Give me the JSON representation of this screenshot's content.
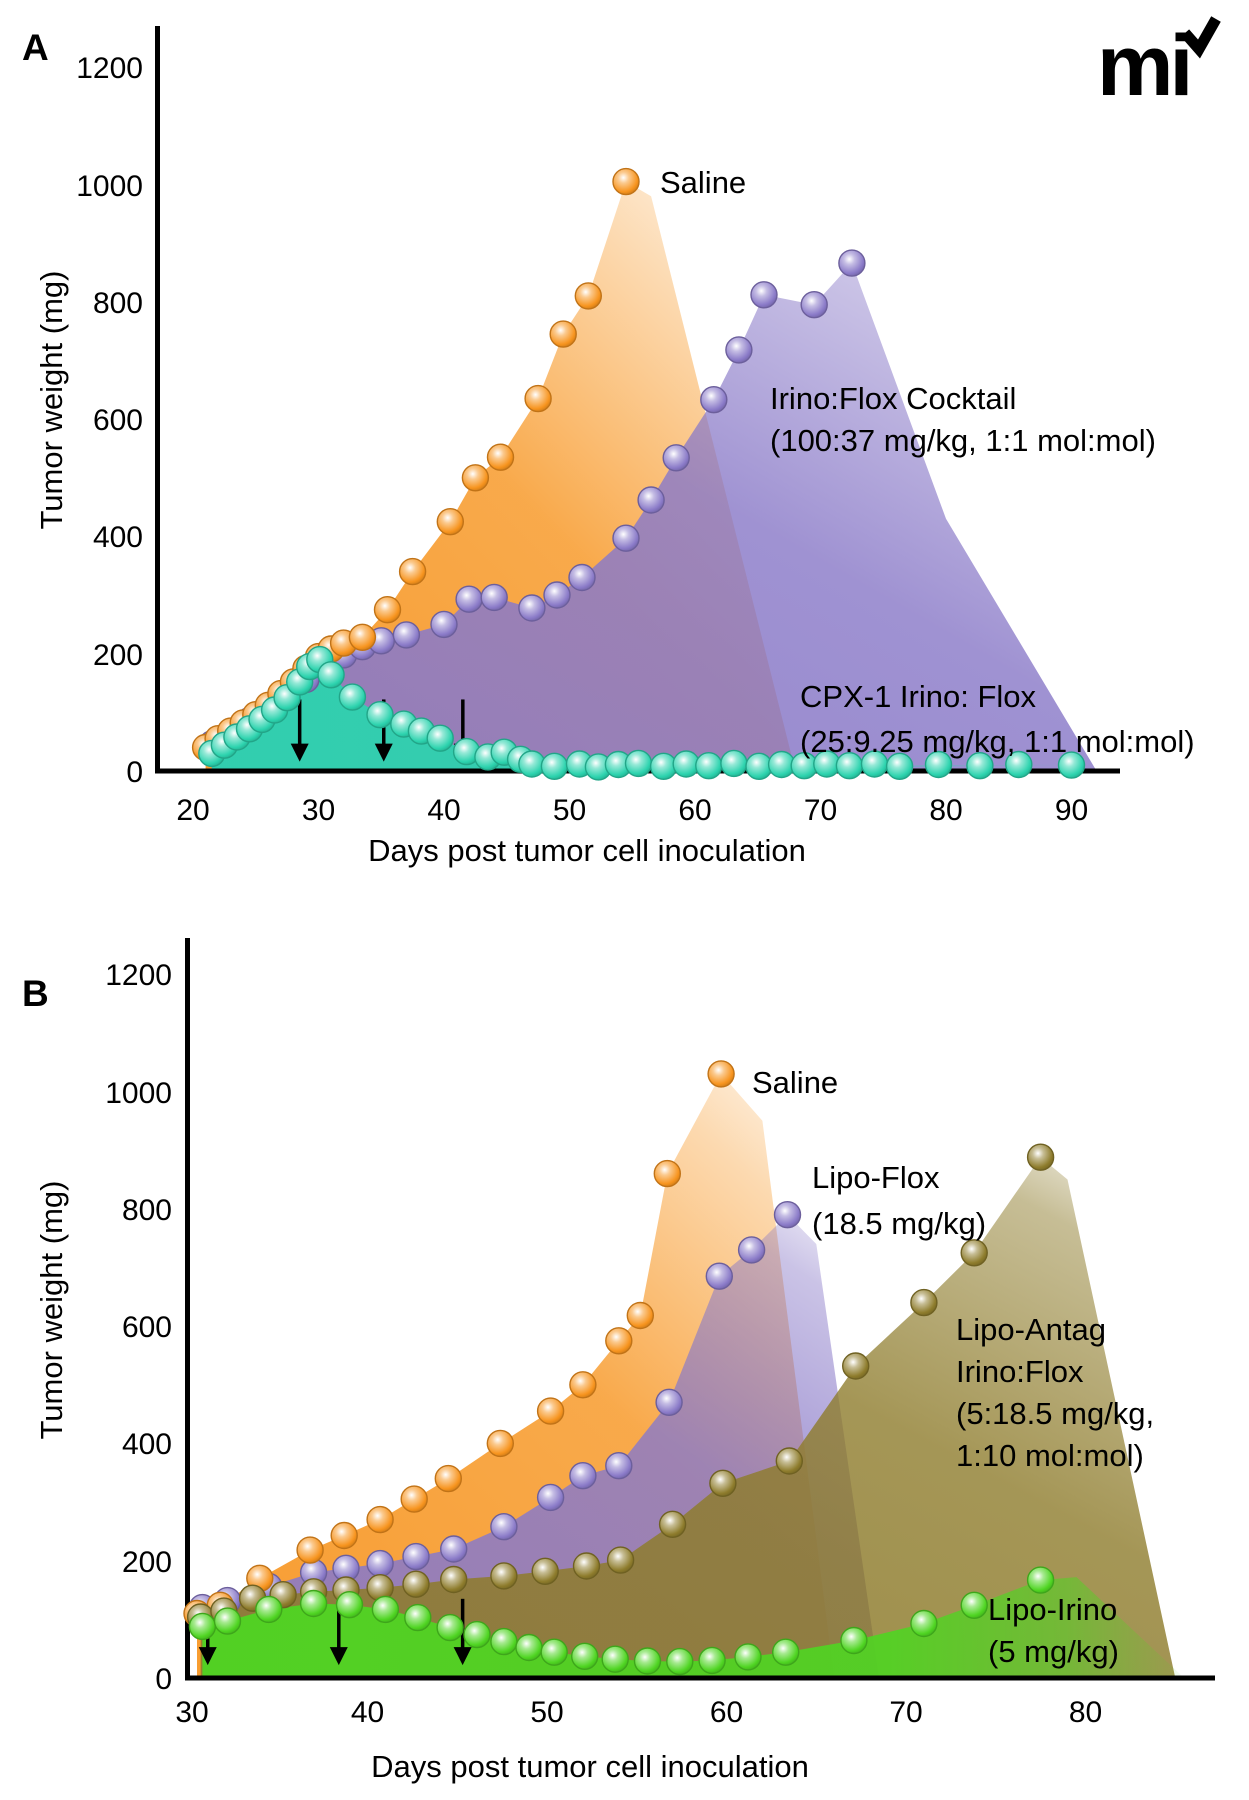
{
  "logo_text": "mi",
  "chart_data": [
    {
      "type": "scatter",
      "panel_label": "A",
      "xlabel": "Days post tumor cell inoculation",
      "ylabel": "Tumor weight (mg)",
      "xlim": [
        20,
        93
      ],
      "ylim": [
        0,
        1300
      ],
      "x_tick_labels": [
        "20",
        "30",
        "40",
        "50",
        "60",
        "70",
        "80",
        "90"
      ],
      "y_tick_labels": [
        "1200",
        "1000",
        "800",
        "600",
        "400",
        "200",
        "0"
      ],
      "grid": false,
      "dose_arrow_days": [
        28.5,
        35.2,
        41.5
      ],
      "series": [
        {
          "name": "Saline",
          "color": "#F7941E",
          "label_lines": [
            "Saline"
          ],
          "points": [
            [
              21,
              40
            ],
            [
              22,
              55
            ],
            [
              23,
              68
            ],
            [
              24,
              82
            ],
            [
              25,
              96
            ],
            [
              26,
              112
            ],
            [
              27,
              132
            ],
            [
              28,
              152
            ],
            [
              29,
              175
            ],
            [
              30,
              195
            ],
            [
              31,
              208
            ],
            [
              32,
              218
            ],
            [
              33.5,
              228
            ],
            [
              35.5,
              275
            ],
            [
              37.5,
              340
            ],
            [
              40.5,
              425
            ],
            [
              42.5,
              500
            ],
            [
              44.5,
              535
            ],
            [
              47.5,
              635
            ],
            [
              49.5,
              745
            ],
            [
              51.5,
              810
            ],
            [
              54.5,
              1005
            ]
          ]
        },
        {
          "name": "Irino:Flox Cocktail",
          "color": "#8A7AC8",
          "label_lines": [
            "Irino:Flox Cocktail",
            "(100:37 mg/kg, 1:1 mol:mol)"
          ],
          "points": [
            [
              21.5,
              46
            ],
            [
              23,
              66
            ],
            [
              24.5,
              86
            ],
            [
              26,
              108
            ],
            [
              27.5,
              132
            ],
            [
              29,
              156
            ],
            [
              30.5,
              178
            ],
            [
              32,
              198
            ],
            [
              33.5,
              212
            ],
            [
              35,
              222
            ],
            [
              37,
              232
            ],
            [
              40,
              250
            ],
            [
              42,
              293
            ],
            [
              44,
              296
            ],
            [
              47,
              278
            ],
            [
              49,
              300
            ],
            [
              51,
              330
            ],
            [
              54.5,
              397
            ],
            [
              56.5,
              462
            ],
            [
              58.5,
              534
            ],
            [
              61.5,
              633
            ],
            [
              63.5,
              718
            ],
            [
              65.5,
              812
            ],
            [
              69.5,
              795
            ],
            [
              72.5,
              866
            ]
          ]
        },
        {
          "name": "CPX-1 Irino:Flox",
          "color": "#2CD3AE",
          "label_lines": [
            "CPX-1 Irino: Flox",
            "(25:9.25 mg/kg, 1:1 mol:mol)"
          ],
          "points": [
            [
              21.5,
              30
            ],
            [
              22.5,
              44
            ],
            [
              23.5,
              58
            ],
            [
              24.5,
              72
            ],
            [
              25.5,
              88
            ],
            [
              26.5,
              104
            ],
            [
              27.5,
              125
            ],
            [
              28.5,
              152
            ],
            [
              29.3,
              178
            ],
            [
              30.1,
              190
            ],
            [
              31,
              164
            ],
            [
              32.7,
              126
            ],
            [
              34.9,
              96
            ],
            [
              36.8,
              80
            ],
            [
              38.2,
              68
            ],
            [
              39.7,
              56
            ],
            [
              41.8,
              33
            ],
            [
              43.5,
              24
            ],
            [
              44.8,
              32
            ],
            [
              46.1,
              20
            ],
            [
              47,
              12
            ],
            [
              48.8,
              8
            ],
            [
              50.8,
              12
            ],
            [
              52.3,
              7
            ],
            [
              53.9,
              11
            ],
            [
              55.5,
              13
            ],
            [
              57.5,
              8
            ],
            [
              59.3,
              12
            ],
            [
              61.1,
              9
            ],
            [
              63.1,
              13
            ],
            [
              65.1,
              8
            ],
            [
              66.9,
              11
            ],
            [
              68.7,
              9
            ],
            [
              70.5,
              12
            ],
            [
              72.3,
              9
            ],
            [
              74.3,
              12
            ],
            [
              76.3,
              8
            ],
            [
              79.4,
              11
            ],
            [
              82.7,
              9
            ],
            [
              85.8,
              11
            ],
            [
              90,
              10
            ]
          ]
        }
      ]
    },
    {
      "type": "scatter",
      "panel_label": "B",
      "xlabel": "Days post tumor cell inoculation",
      "ylabel": "Tumor weight (mg)",
      "xlim": [
        30,
        86
      ],
      "ylim": [
        0,
        1300
      ],
      "x_tick_labels": [
        "30",
        "40",
        "50",
        "60",
        "70",
        "80"
      ],
      "y_tick_labels": [
        "1200",
        "1000",
        "800",
        "600",
        "400",
        "200",
        "0"
      ],
      "grid": false,
      "dose_arrow_days": [
        31.1,
        38.4,
        45.3
      ],
      "series": [
        {
          "name": "Saline",
          "color": "#F7941E",
          "label_lines": [
            "Saline"
          ],
          "points": [
            [
              30.5,
              110
            ],
            [
              31.8,
              124
            ],
            [
              34,
              170
            ],
            [
              36.8,
              218
            ],
            [
              38.7,
              243
            ],
            [
              40.7,
              270
            ],
            [
              42.6,
              305
            ],
            [
              44.5,
              340
            ],
            [
              47.4,
              400
            ],
            [
              50.2,
              455
            ],
            [
              52,
              500
            ],
            [
              54,
              575
            ],
            [
              55.2,
              618
            ],
            [
              56.7,
              860
            ],
            [
              59.7,
              1030
            ]
          ]
        },
        {
          "name": "Lipo-Flox",
          "color": "#8A7AC8",
          "label_lines": [
            "Lipo-Flox",
            "(18.5 mg/kg)"
          ],
          "points": [
            [
              30.8,
              120
            ],
            [
              32.2,
              132
            ],
            [
              34.5,
              156
            ],
            [
              37,
              180
            ],
            [
              38.8,
              187
            ],
            [
              40.7,
              195
            ],
            [
              42.7,
              207
            ],
            [
              44.8,
              220
            ],
            [
              47.6,
              258
            ],
            [
              50.2,
              308
            ],
            [
              52,
              345
            ],
            [
              54,
              362
            ],
            [
              56.8,
              470
            ],
            [
              59.6,
              685
            ],
            [
              61.4,
              730
            ],
            [
              63.4,
              790
            ]
          ]
        },
        {
          "name": "Lipo-Antag Irino:Flox",
          "color": "#8E7C2C",
          "label_lines": [
            "Lipo-Antag",
            "Irino:Flox",
            "(5:18.5 mg/kg,",
            "1:10 mol:mol)"
          ],
          "points": [
            [
              30.7,
              104
            ],
            [
              32,
              114
            ],
            [
              33.6,
              136
            ],
            [
              35.3,
              142
            ],
            [
              37,
              147
            ],
            [
              38.8,
              150
            ],
            [
              40.7,
              154
            ],
            [
              42.7,
              160
            ],
            [
              44.8,
              168
            ],
            [
              47.6,
              174
            ],
            [
              49.9,
              182
            ],
            [
              52.2,
              191
            ],
            [
              54.1,
              201
            ],
            [
              57,
              262
            ],
            [
              59.8,
              332
            ],
            [
              63.5,
              370
            ],
            [
              67.2,
              532
            ],
            [
              71,
              640
            ],
            [
              73.8,
              725
            ],
            [
              77.5,
              888
            ]
          ]
        },
        {
          "name": "Lipo-Irino",
          "color": "#4FD522",
          "label_lines": [
            "Lipo-Irino",
            "(5 mg/kg)"
          ],
          "points": [
            [
              30.8,
              88
            ],
            [
              32.2,
              97
            ],
            [
              34.5,
              117
            ],
            [
              37,
              127
            ],
            [
              39,
              125
            ],
            [
              41,
              117
            ],
            [
              42.8,
              103
            ],
            [
              44.6,
              86
            ],
            [
              46.1,
              74
            ],
            [
              47.6,
              62
            ],
            [
              49,
              52
            ],
            [
              50.4,
              44
            ],
            [
              52.1,
              37
            ],
            [
              53.8,
              32
            ],
            [
              55.6,
              29
            ],
            [
              57.4,
              28
            ],
            [
              59.2,
              30
            ],
            [
              61.2,
              36
            ],
            [
              63.3,
              44
            ],
            [
              67.1,
              64
            ],
            [
              71,
              93
            ],
            [
              73.8,
              124
            ],
            [
              77.5,
              167
            ]
          ]
        }
      ]
    }
  ]
}
